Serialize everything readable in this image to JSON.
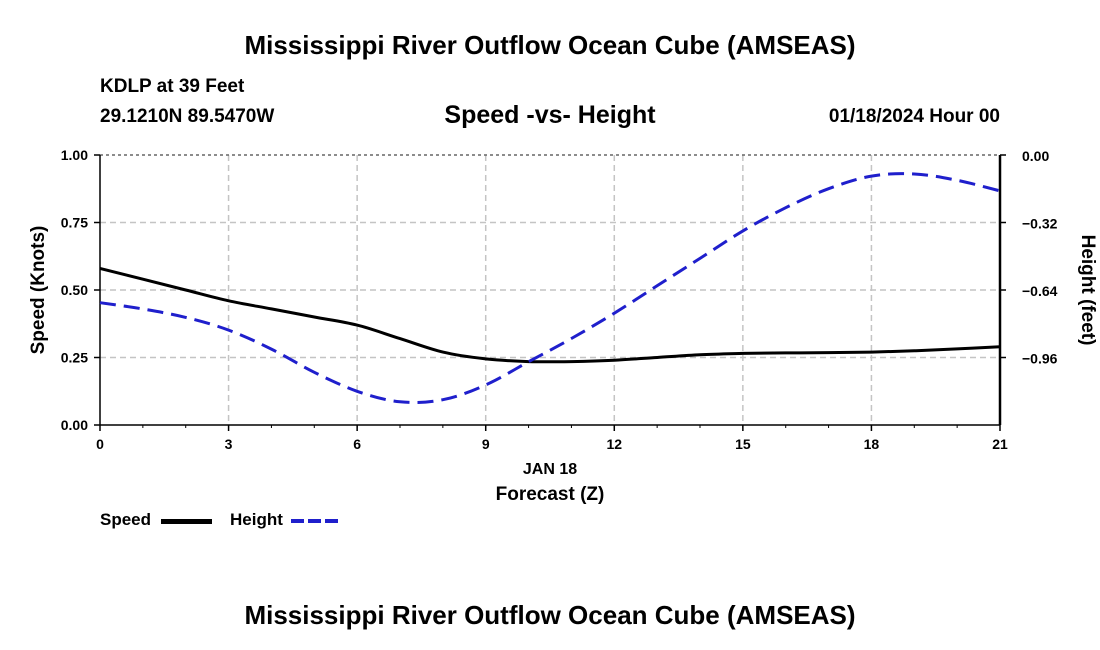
{
  "page": {
    "title": "Mississippi River Outflow Ocean Cube (AMSEAS)",
    "footer_title": "Mississippi River Outflow Ocean Cube (AMSEAS)"
  },
  "station": {
    "name": "KDLP at 39 Feet",
    "coords": "29.1210N  89.5470W",
    "datetime": "01/18/2024 Hour 00"
  },
  "chart_data": {
    "type": "line",
    "title": "Speed -vs- Height",
    "xlabel": "Forecast (Z)",
    "xdate_label": "JAN 18",
    "ylabel_left": "Speed (Knots)",
    "ylabel_right": "Height (feet)",
    "xlim": [
      0,
      21
    ],
    "ylim_left": [
      0,
      1
    ],
    "ylim_right": [
      -1.28,
      0
    ],
    "x_ticks": [
      0,
      3,
      6,
      9,
      12,
      15,
      18,
      21
    ],
    "x_tick_labels": [
      "0",
      "3",
      "6",
      "9",
      "12",
      "15",
      "18",
      "21"
    ],
    "y_left_ticks": [
      0,
      0.25,
      0.5,
      0.75,
      1.0
    ],
    "y_left_tick_labels": [
      "0.00",
      "0.25",
      "0.50",
      "0.75",
      "1.00"
    ],
    "y_right_ticks": [
      0,
      -0.32,
      -0.64,
      -0.96
    ],
    "y_right_tick_labels": [
      "0.00",
      "−0.32",
      "−0.64",
      "−0.96"
    ],
    "grid": true,
    "legend_position": "bottom-left",
    "series": [
      {
        "name": "Speed",
        "axis": "left",
        "color": "#000000",
        "style": "solid",
        "x": [
          0,
          1,
          2,
          3,
          4,
          5,
          6,
          7,
          8,
          9,
          10,
          11,
          12,
          13,
          14,
          15,
          16,
          17,
          18,
          19,
          20,
          21
        ],
        "values": [
          0.58,
          0.54,
          0.5,
          0.46,
          0.43,
          0.4,
          0.37,
          0.32,
          0.27,
          0.245,
          0.235,
          0.235,
          0.24,
          0.25,
          0.26,
          0.265,
          0.267,
          0.268,
          0.27,
          0.275,
          0.282,
          0.29
        ]
      },
      {
        "name": "Height",
        "axis": "right",
        "color": "#1f1fcc",
        "style": "dashed",
        "x": [
          0,
          1,
          2,
          3,
          4,
          5,
          6,
          7,
          8,
          9,
          10,
          11,
          12,
          13,
          14,
          15,
          16,
          17,
          18,
          19,
          20,
          21
        ],
        "values": [
          -0.7,
          -0.73,
          -0.77,
          -0.83,
          -0.92,
          -1.03,
          -1.12,
          -1.17,
          -1.16,
          -1.09,
          -0.98,
          -0.87,
          -0.75,
          -0.62,
          -0.49,
          -0.36,
          -0.25,
          -0.16,
          -0.1,
          -0.09,
          -0.12,
          -0.17
        ]
      }
    ]
  }
}
